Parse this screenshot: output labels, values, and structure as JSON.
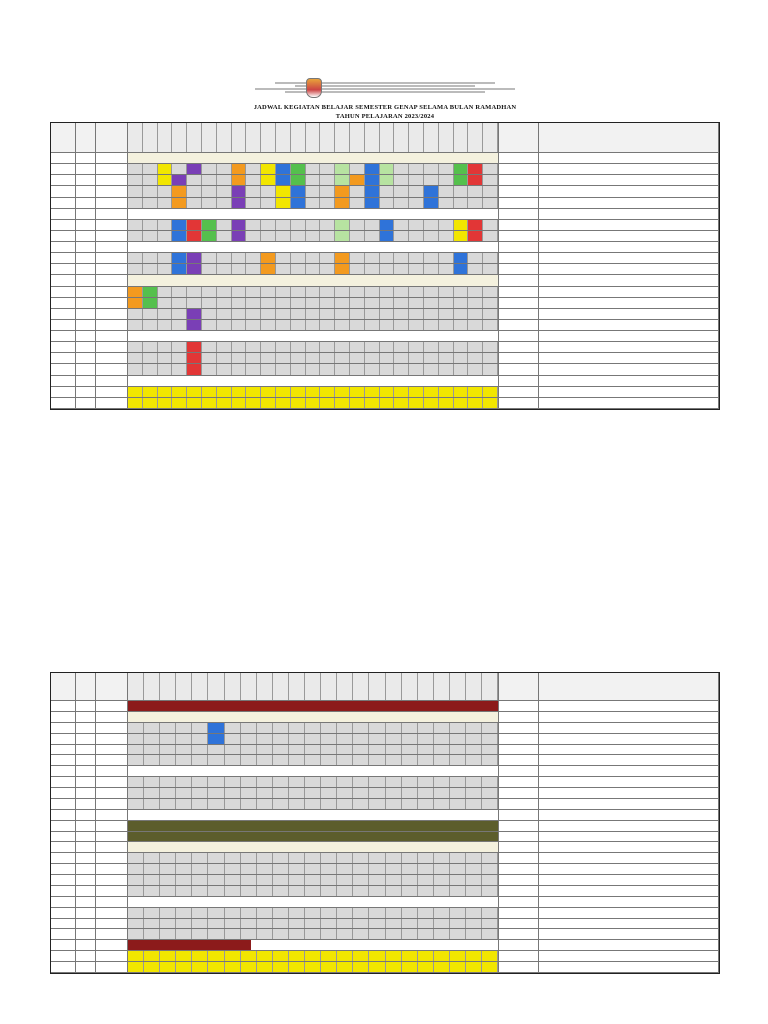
{
  "header": {
    "logo_icon": "jakarta-crest-icon",
    "title": "JADWAL KEGIATAN BELAJAR SEMESTER GENAP SELAMA BULAN RAMADHAN",
    "subtitle": "TAHUN PELAJARAN 2023/2024"
  },
  "palette": {
    "yellow": "#f2e600",
    "green": "#55c04d",
    "blue": "#2f73d9",
    "red": "#e23636",
    "orange": "#f39a1f",
    "purple": "#7a3fb6",
    "lightgreen": "#b7e3a1",
    "lightblue": "#bfe0f4",
    "pink": "#f3b3c8",
    "tan": "#e8d7a2",
    "gray": "#d9d9d9",
    "white": "#ffffff"
  },
  "top_rows": [
    {
      "type": "banner"
    },
    {
      "type": "lesson",
      "colors": [
        "gray",
        "gray",
        "yellow",
        "gray",
        "purple",
        "gray",
        "gray",
        "orange",
        "gray",
        "yellow",
        "blue",
        "green",
        "gray",
        "gray",
        "lightgreen",
        "gray",
        "blue",
        "lightgreen",
        "gray",
        "gray",
        "gray",
        "gray",
        "green",
        "red",
        "gray"
      ]
    },
    {
      "type": "lesson",
      "colors": [
        "gray",
        "gray",
        "yellow",
        "purple",
        "gray",
        "gray",
        "gray",
        "orange",
        "gray",
        "yellow",
        "blue",
        "green",
        "gray",
        "gray",
        "lightgreen",
        "orange",
        "blue",
        "lightgreen",
        "gray",
        "gray",
        "gray",
        "gray",
        "green",
        "red",
        "gray"
      ]
    },
    {
      "type": "lesson",
      "colors": [
        "gray",
        "gray",
        "gray",
        "orange",
        "gray",
        "gray",
        "gray",
        "purple",
        "gray",
        "gray",
        "yellow",
        "blue",
        "gray",
        "gray",
        "orange",
        "gray",
        "blue",
        "gray",
        "gray",
        "gray",
        "blue",
        "gray",
        "gray",
        "gray",
        "gray"
      ]
    },
    {
      "type": "lesson",
      "colors": [
        "gray",
        "gray",
        "gray",
        "orange",
        "gray",
        "gray",
        "gray",
        "purple",
        "gray",
        "gray",
        "yellow",
        "blue",
        "gray",
        "gray",
        "orange",
        "gray",
        "blue",
        "gray",
        "gray",
        "gray",
        "blue",
        "gray",
        "gray",
        "gray",
        "gray"
      ]
    },
    {
      "type": "break"
    },
    {
      "type": "lesson",
      "colors": [
        "gray",
        "gray",
        "gray",
        "blue",
        "red",
        "green",
        "gray",
        "purple",
        "gray",
        "gray",
        "gray",
        "gray",
        "gray",
        "gray",
        "lightgreen",
        "gray",
        "gray",
        "blue",
        "gray",
        "gray",
        "gray",
        "gray",
        "yellow",
        "red",
        "gray"
      ]
    },
    {
      "type": "lesson",
      "colors": [
        "gray",
        "gray",
        "gray",
        "blue",
        "red",
        "green",
        "gray",
        "purple",
        "gray",
        "gray",
        "gray",
        "gray",
        "gray",
        "gray",
        "lightgreen",
        "gray",
        "gray",
        "blue",
        "gray",
        "gray",
        "gray",
        "gray",
        "yellow",
        "red",
        "gray"
      ]
    },
    {
      "type": "break"
    },
    {
      "type": "lesson",
      "colors": [
        "gray",
        "gray",
        "gray",
        "blue",
        "purple",
        "gray",
        "gray",
        "gray",
        "gray",
        "orange",
        "gray",
        "gray",
        "gray",
        "gray",
        "orange",
        "gray",
        "gray",
        "gray",
        "gray",
        "gray",
        "gray",
        "gray",
        "blue",
        "gray",
        "gray"
      ]
    },
    {
      "type": "lesson",
      "colors": [
        "gray",
        "gray",
        "gray",
        "blue",
        "purple",
        "gray",
        "gray",
        "gray",
        "gray",
        "orange",
        "gray",
        "gray",
        "gray",
        "gray",
        "orange",
        "gray",
        "gray",
        "gray",
        "gray",
        "gray",
        "gray",
        "gray",
        "blue",
        "gray",
        "gray"
      ]
    },
    {
      "type": "banner"
    },
    {
      "type": "lesson",
      "colors": [
        "orange",
        "green",
        "gray",
        "gray",
        "gray",
        "gray",
        "gray",
        "gray",
        "gray",
        "gray",
        "gray",
        "gray",
        "gray",
        "gray",
        "gray",
        "gray",
        "gray",
        "gray",
        "gray",
        "gray",
        "gray",
        "gray",
        "gray",
        "gray",
        "gray"
      ]
    },
    {
      "type": "lesson",
      "colors": [
        "orange",
        "green",
        "gray",
        "gray",
        "gray",
        "gray",
        "gray",
        "gray",
        "gray",
        "gray",
        "gray",
        "gray",
        "gray",
        "gray",
        "gray",
        "gray",
        "gray",
        "gray",
        "gray",
        "gray",
        "gray",
        "gray",
        "gray",
        "gray",
        "gray"
      ]
    },
    {
      "type": "lesson",
      "colors": [
        "gray",
        "gray",
        "gray",
        "gray",
        "purple",
        "gray",
        "gray",
        "gray",
        "gray",
        "gray",
        "gray",
        "gray",
        "gray",
        "gray",
        "gray",
        "gray",
        "gray",
        "gray",
        "gray",
        "gray",
        "gray",
        "gray",
        "gray",
        "gray",
        "gray"
      ]
    },
    {
      "type": "lesson",
      "colors": [
        "gray",
        "gray",
        "gray",
        "gray",
        "purple",
        "gray",
        "gray",
        "gray",
        "gray",
        "gray",
        "gray",
        "gray",
        "gray",
        "gray",
        "gray",
        "gray",
        "gray",
        "gray",
        "gray",
        "gray",
        "gray",
        "gray",
        "gray",
        "gray",
        "gray"
      ]
    },
    {
      "type": "break"
    },
    {
      "type": "lesson",
      "colors": [
        "gray",
        "gray",
        "gray",
        "gray",
        "red",
        "gray",
        "gray",
        "gray",
        "gray",
        "gray",
        "gray",
        "gray",
        "gray",
        "gray",
        "gray",
        "gray",
        "gray",
        "gray",
        "gray",
        "gray",
        "gray",
        "gray",
        "gray",
        "gray",
        "gray"
      ]
    },
    {
      "type": "lesson",
      "colors": [
        "gray",
        "gray",
        "gray",
        "gray",
        "red",
        "gray",
        "gray",
        "gray",
        "gray",
        "gray",
        "gray",
        "gray",
        "gray",
        "gray",
        "gray",
        "gray",
        "gray",
        "gray",
        "gray",
        "gray",
        "gray",
        "gray",
        "gray",
        "gray",
        "gray"
      ]
    },
    {
      "type": "lesson",
      "colors": [
        "gray",
        "gray",
        "gray",
        "gray",
        "red",
        "gray",
        "gray",
        "gray",
        "gray",
        "gray",
        "gray",
        "gray",
        "gray",
        "gray",
        "gray",
        "gray",
        "gray",
        "gray",
        "gray",
        "gray",
        "gray",
        "gray",
        "gray",
        "gray",
        "gray"
      ]
    },
    {
      "type": "break"
    },
    {
      "type": "lesson",
      "colors": [
        "yellow",
        "yellow",
        "yellow",
        "yellow",
        "yellow",
        "yellow",
        "yellow",
        "yellow",
        "yellow",
        "yellow",
        "yellow",
        "yellow",
        "yellow",
        "yellow",
        "yellow",
        "yellow",
        "yellow",
        "yellow",
        "yellow",
        "yellow",
        "yellow",
        "yellow",
        "yellow",
        "yellow",
        "yellow"
      ]
    },
    {
      "type": "lesson",
      "colors": [
        "yellow",
        "yellow",
        "yellow",
        "yellow",
        "yellow",
        "yellow",
        "yellow",
        "yellow",
        "yellow",
        "yellow",
        "yellow",
        "yellow",
        "yellow",
        "yellow",
        "yellow",
        "yellow",
        "yellow",
        "yellow",
        "yellow",
        "yellow",
        "yellow",
        "yellow",
        "yellow",
        "yellow",
        "yellow"
      ]
    }
  ],
  "bottom_rows": [
    {
      "type": "ps"
    },
    {
      "type": "banner"
    },
    {
      "type": "lesson",
      "colors": [
        "gray",
        "gray",
        "gray",
        "gray",
        "gray",
        "blue",
        "gray",
        "gray",
        "gray",
        "gray",
        "gray",
        "gray",
        "gray",
        "gray",
        "gray",
        "gray",
        "gray",
        "gray",
        "gray",
        "gray",
        "gray",
        "gray",
        "gray"
      ]
    },
    {
      "type": "lesson",
      "colors": [
        "gray",
        "gray",
        "gray",
        "gray",
        "gray",
        "blue",
        "gray",
        "gray",
        "gray",
        "gray",
        "gray",
        "gray",
        "gray",
        "gray",
        "gray",
        "gray",
        "gray",
        "gray",
        "gray",
        "gray",
        "gray",
        "gray",
        "gray"
      ]
    },
    {
      "type": "lesson",
      "colors": [
        "gray",
        "gray",
        "gray",
        "gray",
        "gray",
        "gray",
        "gray",
        "gray",
        "gray",
        "gray",
        "gray",
        "gray",
        "gray",
        "gray",
        "gray",
        "gray",
        "gray",
        "gray",
        "gray",
        "gray",
        "gray",
        "gray",
        "gray"
      ]
    },
    {
      "type": "lesson",
      "colors": [
        "gray",
        "gray",
        "gray",
        "gray",
        "gray",
        "gray",
        "gray",
        "gray",
        "gray",
        "gray",
        "gray",
        "gray",
        "gray",
        "gray",
        "gray",
        "gray",
        "gray",
        "gray",
        "gray",
        "gray",
        "gray",
        "gray",
        "gray"
      ]
    },
    {
      "type": "break"
    },
    {
      "type": "lesson",
      "colors": [
        "gray",
        "gray",
        "gray",
        "gray",
        "gray",
        "gray",
        "gray",
        "gray",
        "gray",
        "gray",
        "gray",
        "gray",
        "gray",
        "gray",
        "gray",
        "gray",
        "gray",
        "gray",
        "gray",
        "gray",
        "gray",
        "gray",
        "gray"
      ]
    },
    {
      "type": "lesson",
      "colors": [
        "gray",
        "gray",
        "gray",
        "gray",
        "gray",
        "gray",
        "gray",
        "gray",
        "gray",
        "gray",
        "gray",
        "gray",
        "gray",
        "gray",
        "gray",
        "gray",
        "gray",
        "gray",
        "gray",
        "gray",
        "gray",
        "gray",
        "gray"
      ]
    },
    {
      "type": "lesson",
      "colors": [
        "gray",
        "gray",
        "gray",
        "gray",
        "gray",
        "gray",
        "gray",
        "gray",
        "gray",
        "gray",
        "gray",
        "gray",
        "gray",
        "gray",
        "gray",
        "gray",
        "gray",
        "gray",
        "gray",
        "gray",
        "gray",
        "gray",
        "gray"
      ]
    },
    {
      "type": "break"
    },
    {
      "type": "split"
    },
    {
      "type": "split"
    },
    {
      "type": "banner"
    },
    {
      "type": "lesson",
      "colors": [
        "gray",
        "gray",
        "gray",
        "gray",
        "gray",
        "gray",
        "gray",
        "gray",
        "gray",
        "gray",
        "gray",
        "gray",
        "gray",
        "gray",
        "gray",
        "gray",
        "gray",
        "gray",
        "gray",
        "gray",
        "gray",
        "gray",
        "gray"
      ]
    },
    {
      "type": "lesson",
      "colors": [
        "gray",
        "gray",
        "gray",
        "gray",
        "gray",
        "gray",
        "gray",
        "gray",
        "gray",
        "gray",
        "gray",
        "gray",
        "gray",
        "gray",
        "gray",
        "gray",
        "gray",
        "gray",
        "gray",
        "gray",
        "gray",
        "gray",
        "gray"
      ]
    },
    {
      "type": "lesson",
      "colors": [
        "gray",
        "gray",
        "gray",
        "gray",
        "gray",
        "gray",
        "gray",
        "gray",
        "gray",
        "gray",
        "gray",
        "gray",
        "gray",
        "gray",
        "gray",
        "gray",
        "gray",
        "gray",
        "gray",
        "gray",
        "gray",
        "gray",
        "gray"
      ]
    },
    {
      "type": "lesson",
      "colors": [
        "gray",
        "gray",
        "gray",
        "gray",
        "gray",
        "gray",
        "gray",
        "gray",
        "gray",
        "gray",
        "gray",
        "gray",
        "gray",
        "gray",
        "gray",
        "gray",
        "gray",
        "gray",
        "gray",
        "gray",
        "gray",
        "gray",
        "gray"
      ]
    },
    {
      "type": "break"
    },
    {
      "type": "lesson",
      "colors": [
        "gray",
        "gray",
        "gray",
        "gray",
        "gray",
        "gray",
        "gray",
        "gray",
        "gray",
        "gray",
        "gray",
        "gray",
        "gray",
        "gray",
        "gray",
        "gray",
        "gray",
        "gray",
        "gray",
        "gray",
        "gray",
        "gray",
        "gray"
      ]
    },
    {
      "type": "lesson",
      "colors": [
        "gray",
        "gray",
        "gray",
        "gray",
        "gray",
        "gray",
        "gray",
        "gray",
        "gray",
        "gray",
        "gray",
        "gray",
        "gray",
        "gray",
        "gray",
        "gray",
        "gray",
        "gray",
        "gray",
        "gray",
        "gray",
        "gray",
        "gray"
      ]
    },
    {
      "type": "lesson",
      "colors": [
        "gray",
        "gray",
        "gray",
        "gray",
        "gray",
        "gray",
        "gray",
        "gray",
        "gray",
        "gray",
        "gray",
        "gray",
        "gray",
        "gray",
        "gray",
        "gray",
        "gray",
        "gray",
        "gray",
        "gray",
        "gray",
        "gray",
        "gray"
      ]
    },
    {
      "type": "psbreak"
    },
    {
      "type": "lesson",
      "colors": [
        "yellow",
        "yellow",
        "yellow",
        "yellow",
        "yellow",
        "yellow",
        "yellow",
        "yellow",
        "yellow",
        "yellow",
        "yellow",
        "yellow",
        "yellow",
        "yellow",
        "yellow",
        "yellow",
        "yellow",
        "yellow",
        "yellow",
        "yellow",
        "yellow",
        "yellow",
        "yellow"
      ]
    },
    {
      "type": "lesson",
      "colors": [
        "yellow",
        "yellow",
        "yellow",
        "yellow",
        "yellow",
        "yellow",
        "yellow",
        "yellow",
        "yellow",
        "yellow",
        "yellow",
        "yellow",
        "yellow",
        "yellow",
        "yellow",
        "yellow",
        "yellow",
        "yellow",
        "yellow",
        "yellow",
        "yellow",
        "yellow",
        "yellow"
      ]
    }
  ]
}
